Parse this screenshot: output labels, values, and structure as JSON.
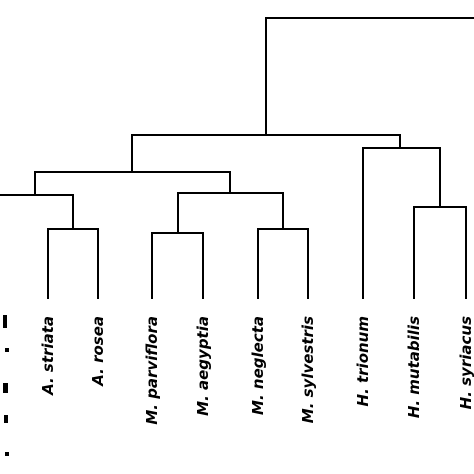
{
  "dendrogram": {
    "leaves": [
      {
        "id": "a-striata",
        "label": "A. striata"
      },
      {
        "id": "a-rosea",
        "label": "A. rosea"
      },
      {
        "id": "m-parviflora",
        "label": "M. parviflora"
      },
      {
        "id": "m-aegyptia",
        "label": "M. aegyptia"
      },
      {
        "id": "m-neglecta",
        "label": "M. neglecta"
      },
      {
        "id": "m-sylvestris",
        "label": "M. sylvestris"
      },
      {
        "id": "h-trionum",
        "label": "H. trionum"
      },
      {
        "id": "h-mutabilis",
        "label": "H. mutabilis"
      },
      {
        "id": "h-syriacus",
        "label": "H. syriacus"
      }
    ],
    "line_color": "#000000",
    "label_style": "bold italic"
  }
}
